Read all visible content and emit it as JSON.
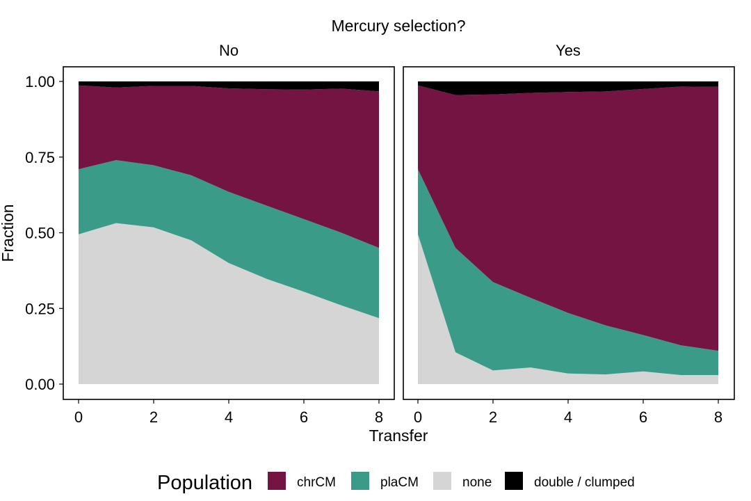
{
  "chart_data": {
    "type": "area",
    "title": "Mercury selection?",
    "xlabel": "Transfer",
    "ylabel": "Fraction",
    "xlim": [
      0,
      8
    ],
    "ylim": [
      0,
      1
    ],
    "x_ticks": [
      "0",
      "2",
      "4",
      "6",
      "8"
    ],
    "y_ticks": [
      "0.00",
      "0.25",
      "0.50",
      "0.75",
      "1.00"
    ],
    "stacked": true,
    "grid": false,
    "legend": {
      "title": "Population",
      "position": "bottom",
      "entries": [
        {
          "label": "chrCM",
          "color": "#741443"
        },
        {
          "label": "plaCM",
          "color": "#3A9C88"
        },
        {
          "label": "none",
          "color": "#D5D5D5"
        },
        {
          "label": "double / clumped",
          "color": "#000000"
        }
      ]
    },
    "x": [
      0,
      1,
      2,
      3,
      4,
      5,
      6,
      7,
      8
    ],
    "panels": [
      {
        "name": "No",
        "series": [
          {
            "name": "none",
            "values": [
              0.495,
              0.532,
              0.518,
              0.475,
              0.4,
              0.348,
              0.305,
              0.26,
              0.218
            ]
          },
          {
            "name": "plaCM",
            "values": [
              0.215,
              0.208,
              0.205,
              0.215,
              0.235,
              0.242,
              0.24,
              0.24,
              0.232
            ]
          },
          {
            "name": "chrCM",
            "values": [
              0.277,
              0.24,
              0.262,
              0.295,
              0.342,
              0.384,
              0.428,
              0.476,
              0.517
            ]
          },
          {
            "name": "double / clumped",
            "values": [
              0.013,
              0.02,
              0.015,
              0.015,
              0.023,
              0.026,
              0.027,
              0.024,
              0.033
            ]
          }
        ]
      },
      {
        "name": "Yes",
        "series": [
          {
            "name": "none",
            "values": [
              0.495,
              0.105,
              0.045,
              0.055,
              0.035,
              0.032,
              0.042,
              0.03,
              0.03
            ]
          },
          {
            "name": "plaCM",
            "values": [
              0.215,
              0.345,
              0.292,
              0.23,
              0.2,
              0.162,
              0.12,
              0.098,
              0.08
            ]
          },
          {
            "name": "chrCM",
            "values": [
              0.277,
              0.505,
              0.62,
              0.677,
              0.73,
              0.773,
              0.813,
              0.855,
              0.872
            ]
          },
          {
            "name": "double / clumped",
            "values": [
              0.013,
              0.045,
              0.043,
              0.038,
              0.035,
              0.033,
              0.025,
              0.017,
              0.018
            ]
          }
        ]
      }
    ]
  }
}
